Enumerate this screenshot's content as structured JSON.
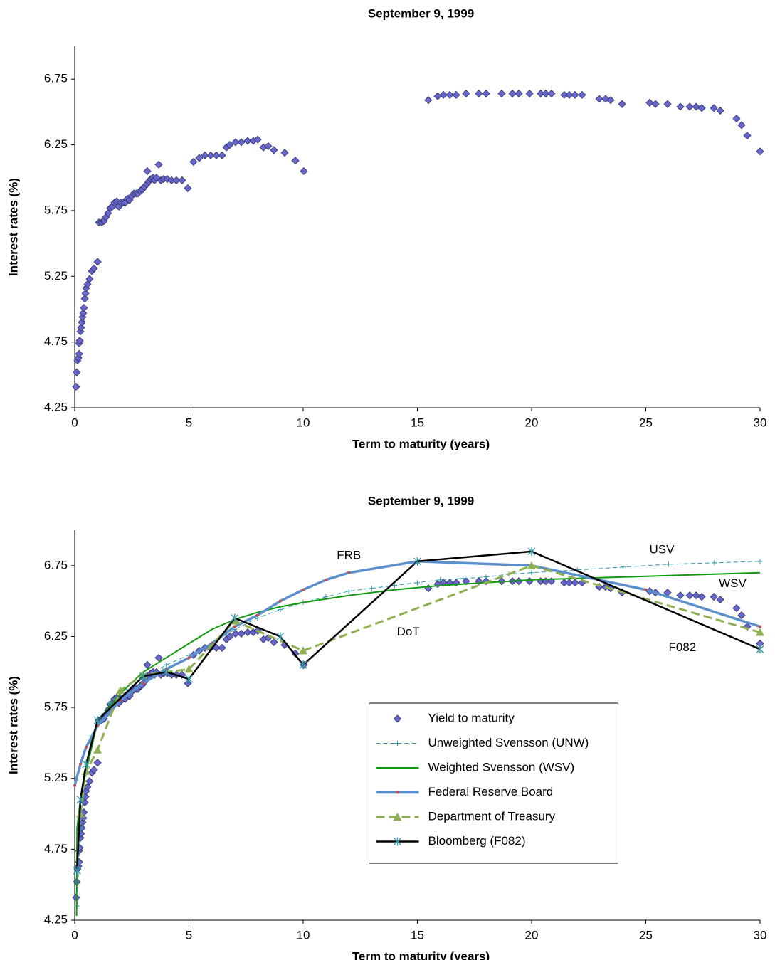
{
  "chart_data": [
    {
      "type": "scatter",
      "title": "September 9, 1999",
      "xlabel": "Term to maturity (years)",
      "ylabel": "Interest rates (%)",
      "xlim": [
        0,
        30
      ],
      "xticks": [
        0,
        5,
        10,
        15,
        20,
        25,
        30
      ],
      "ylim": [
        4.25,
        7.0
      ],
      "yticks": [
        4.25,
        4.75,
        5.25,
        5.75,
        6.25,
        6.75
      ],
      "series": [
        {
          "name": "Yield to maturity",
          "color": "#6666cc",
          "marker": "diamond",
          "line": false,
          "x": [
            0.06,
            0.09,
            0.12,
            0.16,
            0.19,
            0.19,
            0.22,
            0.25,
            0.28,
            0.31,
            0.34,
            0.37,
            0.4,
            0.44,
            0.47,
            0.5,
            0.56,
            0.65,
            0.75,
            0.84,
            1.0,
            1.06,
            1.18,
            1.28,
            1.37,
            1.46,
            1.56,
            1.65,
            1.74,
            1.84,
            1.93,
            2.02,
            2.12,
            2.21,
            2.31,
            2.4,
            2.49,
            2.59,
            2.68,
            2.77,
            2.87,
            2.96,
            3.05,
            3.15,
            3.18,
            3.24,
            3.33,
            3.43,
            3.49,
            3.58,
            3.68,
            3.77,
            3.89,
            4.05,
            4.24,
            4.45,
            4.7,
            4.95,
            5.2,
            5.45,
            5.7,
            5.95,
            6.2,
            6.45,
            6.64,
            6.79,
            7.04,
            7.29,
            7.57,
            7.82,
            8.01,
            8.26,
            8.47,
            8.72,
            9.19,
            9.66,
            10.03,
            15.48,
            15.89,
            16.14,
            16.42,
            16.7,
            17.13,
            17.69,
            18.01,
            18.69,
            19.16,
            19.44,
            19.91,
            20.4,
            20.62,
            20.87,
            21.43,
            21.65,
            21.9,
            22.21,
            22.96,
            23.24,
            23.46,
            23.96,
            25.17,
            25.42,
            25.95,
            26.51,
            26.92,
            27.2,
            27.45,
            27.98,
            28.26,
            28.97,
            29.19,
            29.44,
            30.0
          ],
          "values": [
            4.41,
            4.52,
            4.61,
            4.63,
            4.66,
            4.74,
            4.76,
            4.83,
            4.86,
            4.9,
            4.94,
            4.97,
            5.01,
            5.08,
            5.12,
            5.16,
            5.19,
            5.23,
            5.29,
            5.31,
            5.36,
            5.66,
            5.66,
            5.67,
            5.7,
            5.73,
            5.77,
            5.78,
            5.81,
            5.82,
            5.78,
            5.81,
            5.81,
            5.81,
            5.84,
            5.83,
            5.86,
            5.88,
            5.88,
            5.88,
            5.9,
            5.91,
            5.93,
            5.95,
            6.05,
            5.97,
            5.99,
            6.0,
            5.98,
            6.0,
            6.1,
            5.98,
            5.99,
            5.99,
            5.98,
            5.98,
            5.98,
            5.92,
            6.12,
            6.15,
            6.17,
            6.17,
            6.17,
            6.17,
            6.23,
            6.25,
            6.27,
            6.27,
            6.28,
            6.28,
            6.29,
            6.23,
            6.24,
            6.21,
            6.19,
            6.13,
            6.05,
            6.59,
            6.62,
            6.63,
            6.63,
            6.63,
            6.64,
            6.64,
            6.64,
            6.64,
            6.64,
            6.64,
            6.64,
            6.64,
            6.64,
            6.64,
            6.63,
            6.63,
            6.63,
            6.63,
            6.6,
            6.6,
            6.59,
            6.56,
            6.57,
            6.56,
            6.56,
            6.54,
            6.54,
            6.54,
            6.53,
            6.53,
            6.51,
            6.45,
            6.4,
            6.32,
            6.2
          ]
        }
      ]
    },
    {
      "type": "line",
      "title": "September 9, 1999",
      "xlabel": "Term to maturity (years)",
      "ylabel": "Interest rates (%)",
      "xlim": [
        0,
        30
      ],
      "xticks": [
        0,
        5,
        10,
        15,
        20,
        25,
        30
      ],
      "ylim": [
        4.25,
        7.0
      ],
      "yticks": [
        4.25,
        4.75,
        5.25,
        5.75,
        6.25,
        6.75
      ],
      "legend": "lower-center",
      "annotations": [
        {
          "text": "FRB",
          "x": 12,
          "y": 6.82
        },
        {
          "text": "USV",
          "x": 25.7,
          "y": 6.86
        },
        {
          "text": "WSV",
          "x": 28.8,
          "y": 6.62
        },
        {
          "text": "DoT",
          "x": 14.6,
          "y": 6.28
        },
        {
          "text": "F082",
          "x": 26.6,
          "y": 6.17
        }
      ],
      "series": [
        {
          "name": "Yield to maturity",
          "color": "#6666cc",
          "marker": "diamond",
          "line": false,
          "x": [
            0.06,
            0.09,
            0.12,
            0.16,
            0.19,
            0.19,
            0.22,
            0.25,
            0.28,
            0.31,
            0.34,
            0.37,
            0.4,
            0.44,
            0.47,
            0.5,
            0.56,
            0.65,
            0.75,
            0.84,
            1.0,
            1.06,
            1.18,
            1.28,
            1.37,
            1.46,
            1.56,
            1.65,
            1.74,
            1.84,
            1.93,
            2.02,
            2.12,
            2.21,
            2.31,
            2.4,
            2.49,
            2.59,
            2.68,
            2.77,
            2.87,
            2.96,
            3.05,
            3.15,
            3.18,
            3.24,
            3.33,
            3.43,
            3.49,
            3.58,
            3.68,
            3.77,
            3.89,
            4.05,
            4.24,
            4.45,
            4.7,
            4.95,
            5.2,
            5.45,
            5.7,
            5.95,
            6.2,
            6.45,
            6.64,
            6.79,
            7.04,
            7.29,
            7.57,
            7.82,
            8.01,
            8.26,
            8.47,
            8.72,
            9.19,
            9.66,
            10.03,
            15.48,
            15.89,
            16.14,
            16.42,
            16.7,
            17.13,
            17.69,
            18.01,
            18.69,
            19.16,
            19.44,
            19.91,
            20.4,
            20.62,
            20.87,
            21.43,
            21.65,
            21.9,
            22.21,
            22.96,
            23.24,
            23.46,
            23.96,
            25.17,
            25.42,
            25.95,
            26.51,
            26.92,
            27.2,
            27.45,
            27.98,
            28.26,
            28.97,
            29.19,
            29.44,
            30.0
          ],
          "values": [
            4.41,
            4.52,
            4.61,
            4.63,
            4.66,
            4.74,
            4.76,
            4.83,
            4.86,
            4.9,
            4.94,
            4.97,
            5.01,
            5.08,
            5.12,
            5.16,
            5.19,
            5.23,
            5.29,
            5.31,
            5.36,
            5.66,
            5.66,
            5.67,
            5.7,
            5.73,
            5.77,
            5.78,
            5.81,
            5.82,
            5.78,
            5.81,
            5.81,
            5.81,
            5.84,
            5.83,
            5.86,
            5.88,
            5.88,
            5.88,
            5.9,
            5.91,
            5.93,
            5.95,
            6.05,
            5.97,
            5.99,
            6.0,
            5.98,
            6.0,
            6.1,
            5.98,
            5.99,
            5.99,
            5.98,
            5.98,
            5.98,
            5.92,
            6.12,
            6.15,
            6.17,
            6.17,
            6.17,
            6.17,
            6.23,
            6.25,
            6.27,
            6.27,
            6.28,
            6.28,
            6.29,
            6.23,
            6.24,
            6.21,
            6.19,
            6.13,
            6.05,
            6.59,
            6.62,
            6.63,
            6.63,
            6.63,
            6.64,
            6.64,
            6.64,
            6.64,
            6.64,
            6.64,
            6.64,
            6.64,
            6.64,
            6.64,
            6.63,
            6.63,
            6.63,
            6.63,
            6.6,
            6.6,
            6.59,
            6.56,
            6.57,
            6.56,
            6.56,
            6.54,
            6.54,
            6.54,
            6.53,
            6.53,
            6.51,
            6.45,
            6.4,
            6.32,
            6.2
          ]
        },
        {
          "name": "Unweighted Svensson (UNW)",
          "color": "#3399aa",
          "marker": "plus",
          "line": true,
          "dash": "6,4",
          "width": 1,
          "x": [
            0.1,
            0.25,
            0.5,
            0.75,
            1,
            1.5,
            2,
            3,
            4,
            5,
            6,
            7,
            8,
            9,
            10,
            11,
            12,
            13,
            14,
            15,
            16,
            17,
            18,
            19,
            20,
            22,
            24,
            26,
            28,
            30
          ],
          "values": [
            4.35,
            4.9,
            5.35,
            5.55,
            5.65,
            5.78,
            5.85,
            5.95,
            6.05,
            6.12,
            6.2,
            6.3,
            6.38,
            6.44,
            6.49,
            6.53,
            6.57,
            6.59,
            6.61,
            6.63,
            6.65,
            6.66,
            6.67,
            6.69,
            6.7,
            6.72,
            6.74,
            6.76,
            6.77,
            6.78
          ]
        },
        {
          "name": "Weighted Svensson (WSV)",
          "color": "#119911",
          "marker": "none",
          "line": true,
          "width": 2,
          "x": [
            0.08,
            0.1,
            0.25,
            0.5,
            1,
            2,
            3,
            4,
            5,
            6,
            7,
            8,
            9,
            10,
            12,
            14,
            16,
            18,
            20,
            22,
            24,
            26,
            28,
            30
          ],
          "values": [
            4.28,
            4.9,
            5.1,
            5.3,
            5.65,
            5.85,
            6.0,
            6.1,
            6.2,
            6.3,
            6.37,
            6.42,
            6.46,
            6.49,
            6.54,
            6.58,
            6.61,
            6.63,
            6.65,
            6.66,
            6.67,
            6.68,
            6.69,
            6.7
          ]
        },
        {
          "name": "Federal Reserve Board",
          "color": "#5b8fcc",
          "marker": "dot",
          "markerColor": "#c0504d",
          "line": true,
          "width": 3.5,
          "x": [
            0,
            0.25,
            0.5,
            1,
            2,
            3,
            4,
            5,
            6,
            7,
            8,
            9,
            10,
            11,
            12,
            15,
            20,
            25,
            30
          ],
          "values": [
            5.2,
            5.35,
            5.47,
            5.62,
            5.8,
            5.92,
            6.02,
            6.1,
            6.2,
            6.32,
            6.4,
            6.5,
            6.58,
            6.65,
            6.7,
            6.78,
            6.75,
            6.58,
            6.32
          ]
        },
        {
          "name": "Department of Treasury",
          "color": "#8fb050",
          "marker": "triangle",
          "line": true,
          "dash": "12,6",
          "width": 3,
          "x": [
            0.25,
            0.5,
            1,
            2,
            3,
            5,
            7,
            10,
            20,
            30
          ],
          "values": [
            5.0,
            5.3,
            5.45,
            5.87,
            5.98,
            6.02,
            6.36,
            6.15,
            6.75,
            6.28
          ]
        },
        {
          "name": "Bloomberg (F082)",
          "color": "#000000",
          "marker": "star",
          "markerColor": "#3399aa",
          "line": true,
          "width": 2.5,
          "x": [
            0.1,
            0.25,
            0.5,
            1,
            3,
            4,
            5,
            7,
            9,
            10,
            15,
            20,
            30
          ],
          "values": [
            4.6,
            5.1,
            5.35,
            5.66,
            5.97,
            6.0,
            5.95,
            6.38,
            6.25,
            6.05,
            6.78,
            6.85,
            6.16
          ]
        }
      ]
    }
  ]
}
